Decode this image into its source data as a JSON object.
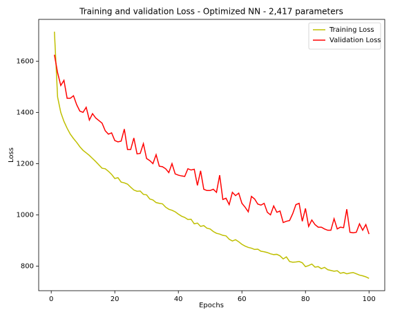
{
  "chart_data": {
    "type": "line",
    "title": "Training and validation Loss - Optimized NN - 2,417 parameters",
    "xlabel": "Epochs",
    "ylabel": "Loss",
    "x": [
      1,
      2,
      3,
      4,
      5,
      6,
      7,
      8,
      9,
      10,
      11,
      12,
      13,
      14,
      15,
      16,
      17,
      18,
      19,
      20,
      21,
      22,
      23,
      24,
      25,
      26,
      27,
      28,
      29,
      30,
      31,
      32,
      33,
      34,
      35,
      36,
      37,
      38,
      39,
      40,
      41,
      42,
      43,
      44,
      45,
      46,
      47,
      48,
      49,
      50,
      51,
      52,
      53,
      54,
      55,
      56,
      57,
      58,
      59,
      60,
      61,
      62,
      63,
      64,
      65,
      66,
      67,
      68,
      69,
      70,
      71,
      72,
      73,
      74,
      75,
      76,
      77,
      78,
      79,
      80,
      81,
      82,
      83,
      84,
      85,
      86,
      87,
      88,
      89,
      90,
      91,
      92,
      93,
      94,
      95,
      96,
      97,
      98,
      99,
      100
    ],
    "series": [
      {
        "name": "Training Loss",
        "color": "#bfbf00",
        "values": [
          1715,
          1460,
          1400,
          1365,
          1338,
          1315,
          1298,
          1283,
          1266,
          1252,
          1242,
          1232,
          1220,
          1208,
          1195,
          1182,
          1180,
          1170,
          1158,
          1142,
          1145,
          1128,
          1125,
          1120,
          1108,
          1097,
          1092,
          1093,
          1080,
          1078,
          1062,
          1058,
          1048,
          1045,
          1043,
          1030,
          1022,
          1018,
          1012,
          1003,
          995,
          990,
          982,
          983,
          965,
          968,
          955,
          958,
          948,
          945,
          935,
          928,
          925,
          920,
          918,
          905,
          898,
          903,
          895,
          885,
          878,
          873,
          870,
          865,
          866,
          858,
          856,
          853,
          848,
          845,
          846,
          840,
          828,
          836,
          818,
          815,
          816,
          818,
          813,
          798,
          802,
          808,
          796,
          798,
          790,
          795,
          786,
          783,
          780,
          782,
          772,
          775,
          770,
          773,
          775,
          770,
          765,
          762,
          758,
          752
        ]
      },
      {
        "name": "Validation Loss",
        "color": "#ff0000",
        "values": [
          1625,
          1555,
          1505,
          1525,
          1455,
          1455,
          1465,
          1430,
          1405,
          1400,
          1420,
          1370,
          1395,
          1378,
          1368,
          1358,
          1328,
          1315,
          1320,
          1290,
          1285,
          1288,
          1335,
          1255,
          1255,
          1300,
          1238,
          1240,
          1278,
          1220,
          1212,
          1200,
          1235,
          1190,
          1188,
          1180,
          1165,
          1200,
          1160,
          1155,
          1152,
          1150,
          1180,
          1175,
          1178,
          1115,
          1172,
          1100,
          1095,
          1095,
          1100,
          1088,
          1155,
          1060,
          1065,
          1040,
          1088,
          1075,
          1085,
          1045,
          1030,
          1012,
          1072,
          1062,
          1042,
          1038,
          1045,
          1010,
          1000,
          1035,
          1010,
          1015,
          970,
          975,
          978,
          1005,
          1040,
          1045,
          975,
          1025,
          955,
          980,
          962,
          952,
          952,
          945,
          940,
          940,
          985,
          945,
          952,
          950,
          1022,
          932,
          930,
          932,
          965,
          940,
          962,
          925
        ]
      }
    ],
    "xlim": [
      -3.95,
      104.95
    ],
    "ylim": [
      704,
      1763
    ],
    "xticks": [
      0,
      20,
      40,
      60,
      80,
      100
    ],
    "yticks": [
      800,
      1000,
      1200,
      1400,
      1600
    ],
    "legend": "upper right"
  }
}
